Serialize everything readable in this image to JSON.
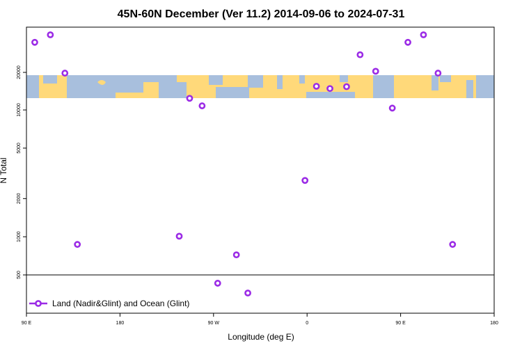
{
  "chart_data": {
    "type": "scatter",
    "title": "45N-60N December (Ver 11.2)   2014-09-06 to 2024-07-31",
    "xlabel": "Longitude (deg E)",
    "ylabel": "N Total",
    "xlim": [
      90,
      540
    ],
    "x_ticks": [
      {
        "value": 90,
        "label": "90 E"
      },
      {
        "value": 180,
        "label": "180"
      },
      {
        "value": 270,
        "label": "90 W"
      },
      {
        "value": 360,
        "label": "0"
      },
      {
        "value": 450,
        "label": "90 E"
      },
      {
        "value": 540,
        "label": "180"
      }
    ],
    "y_lower_scale": "log",
    "y_lower_ticks": [
      {
        "value": 500,
        "label": "500"
      },
      {
        "value": 1000,
        "label": "1000"
      },
      {
        "value": 2000,
        "label": "2000"
      },
      {
        "value": 5000,
        "label": "5000"
      },
      {
        "value": 10000,
        "label": "10000"
      }
    ],
    "y_upper_ticks": [
      {
        "value": 20000,
        "label": "20000"
      }
    ],
    "background_map": {
      "land_color": "#FFD97A",
      "ocean_color": "#A8BFDD"
    },
    "legend": {
      "position": "bottom-left"
    },
    "series": [
      {
        "name": "Land (Nadir&Glint) and Ocean (Glint)",
        "color": "#9B2BE6",
        "points": [
          {
            "x": 98,
            "y": 28000
          },
          {
            "x": 113,
            "y": 30000
          },
          {
            "x": 127,
            "y": 19800
          },
          {
            "x": 139,
            "y": 870
          },
          {
            "x": 237,
            "y": 1010
          },
          {
            "x": 247,
            "y": 13100
          },
          {
            "x": 259,
            "y": 11100
          },
          {
            "x": 274,
            "y": 430
          },
          {
            "x": 292,
            "y": 720
          },
          {
            "x": 303,
            "y": 360
          },
          {
            "x": 358,
            "y": 2780
          },
          {
            "x": 369,
            "y": 16300
          },
          {
            "x": 382,
            "y": 15700
          },
          {
            "x": 398,
            "y": 16200
          },
          {
            "x": 411,
            "y": 24700
          },
          {
            "x": 426,
            "y": 20300
          },
          {
            "x": 442,
            "y": 10500
          },
          {
            "x": 457,
            "y": 28000
          },
          {
            "x": 472,
            "y": 30000
          },
          {
            "x": 486,
            "y": 19800
          },
          {
            "x": 500,
            "y": 870
          }
        ]
      }
    ]
  }
}
